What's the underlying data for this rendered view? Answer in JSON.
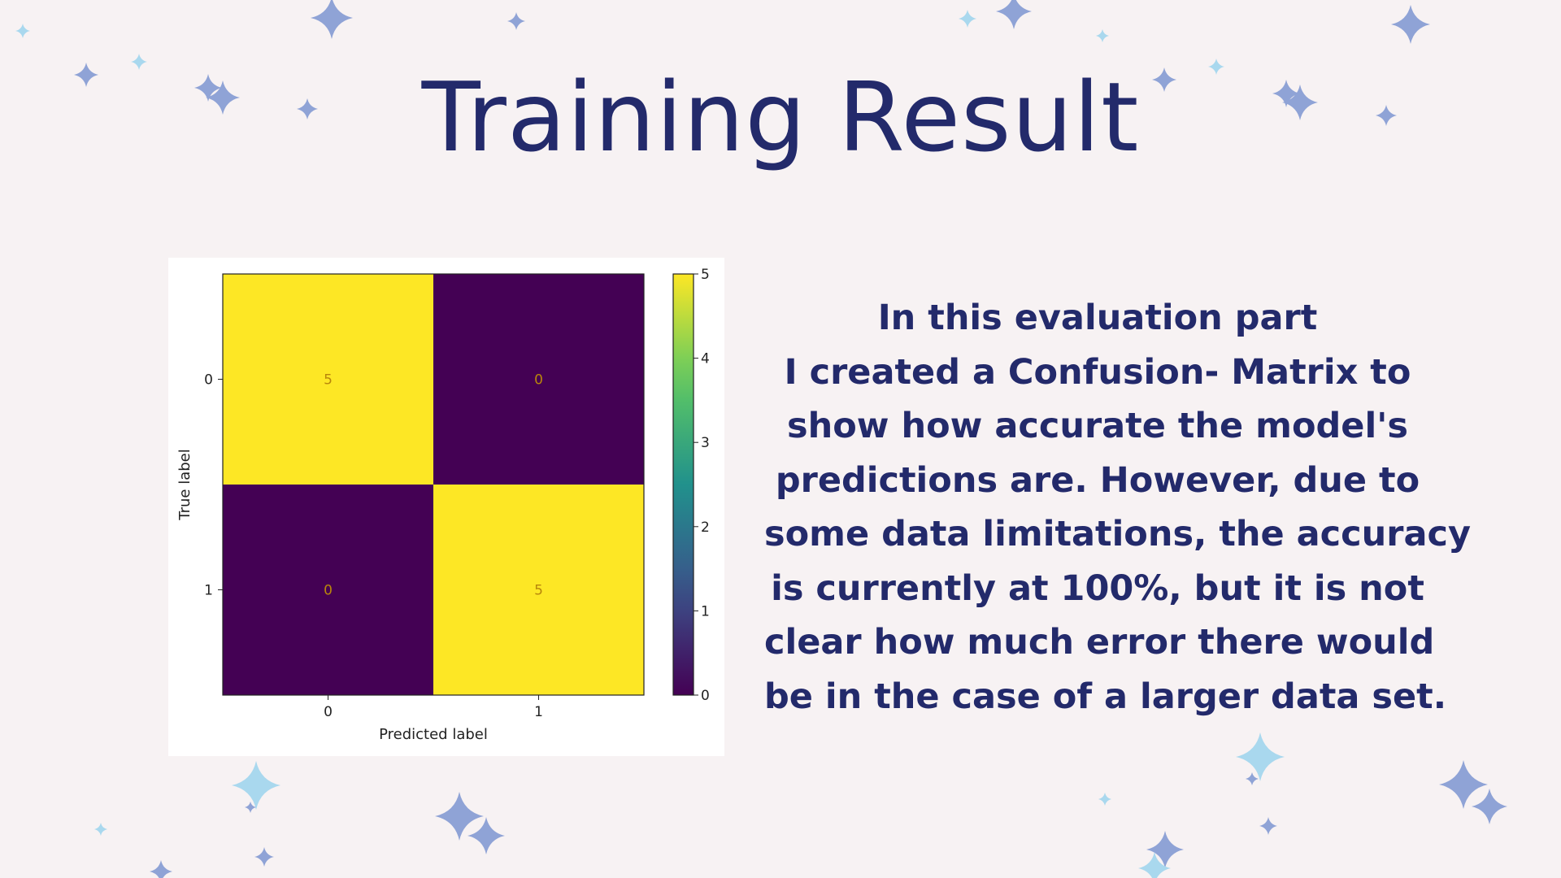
{
  "slide": {
    "title": "Training Result",
    "description_lines": [
      "In this evaluation part",
      "I created a Confusion- Matrix to",
      "show how accurate the model's",
      "predictions are. However, due to",
      "some data limitations, the accuracy",
      "is currently at 100%, but it is not",
      "clear how much error there would",
      "be in the case of a larger data set."
    ]
  },
  "colors": {
    "background": "#f7f2f3",
    "text": "#232a6b",
    "cell_high": "#fde725",
    "cell_low": "#440154",
    "cell_text": "#b8860b",
    "star_blue": "#8fa3d6",
    "star_light": "#a9d8ee"
  },
  "chart_data": {
    "type": "heatmap",
    "title": "",
    "xlabel": "Predicted label",
    "ylabel": "True label",
    "x_categories": [
      "0",
      "1"
    ],
    "y_categories": [
      "0",
      "1"
    ],
    "values": [
      [
        5,
        0
      ],
      [
        0,
        5
      ]
    ],
    "colormap": "viridis",
    "colorbar": {
      "min": 0,
      "max": 5,
      "ticks": [
        "0",
        "1",
        "2",
        "3",
        "4",
        "5"
      ]
    }
  }
}
